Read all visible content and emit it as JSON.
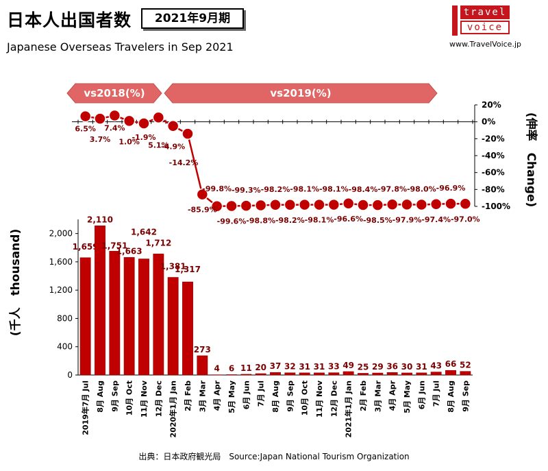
{
  "header": {
    "title": "日本人出国者数",
    "period": "2021年9月期",
    "subtitle": "Japanese Overseas Travelers in Sep 2021",
    "site": "www.TravelVoice.jp",
    "logo_top": "travel",
    "logo_bottom": "voice"
  },
  "source": "出典：日本政府観光局　Source:Japan  National Tourism  Organization",
  "colors": {
    "bar": "#c00000",
    "bar_stroke": "#8b0000",
    "line": "#c00000",
    "arrow": "#e06666",
    "label": "#7b0000"
  },
  "chart_data": [
    {
      "type": "bar",
      "ylabel": "(千人　thousand)",
      "ylim": [
        0,
        2200
      ],
      "yticks": [
        "0",
        "400",
        "800",
        "1,200",
        "1,600",
        "2,000"
      ],
      "ytick_values": [
        0,
        400,
        800,
        1200,
        1600,
        2000
      ],
      "categories": [
        "7月 Jul",
        "8月 Aug",
        "9月 Sep",
        "10月 Oct",
        "11月 Nov",
        "12月 Dec",
        "1月 Jan",
        "2月 Feb",
        "3月 Mar",
        "4月 Apr",
        "5月 May",
        "6月 Jun",
        "7月 Jul",
        "8月 Aug",
        "9月 Sep",
        "10月 Oct",
        "11月 Nov",
        "12月 Dec",
        "1月 Jan",
        "2月 Feb",
        "3月 Mar",
        "4月 Apr",
        "5月 May",
        "6月 Jun",
        "7月 Jul",
        "8月 Aug",
        "9月 Sep"
      ],
      "year_prefixes": {
        "0": "2019年",
        "6": "2020年",
        "18": "2021年"
      },
      "values": [
        1659,
        2110,
        1751,
        1663,
        1642,
        1712,
        1381,
        1317,
        273,
        4,
        6,
        11,
        20,
        37,
        32,
        31,
        31,
        33,
        49,
        25,
        29,
        36,
        30,
        31,
        43,
        66,
        52
      ],
      "value_labels": [
        "1,659",
        "2,110",
        "1,751",
        "1,663",
        "1,642",
        "1,712",
        "1,381",
        "1,317",
        "273",
        "4",
        "6",
        "11",
        "20",
        "37",
        "32",
        "31",
        "31",
        "33",
        "49",
        "25",
        "29",
        "36",
        "30",
        "31",
        "43",
        "66",
        "52"
      ]
    },
    {
      "type": "line",
      "ylabel": "(伸率　Change)",
      "ylim": [
        -100,
        20
      ],
      "yticks": [
        "20%",
        "0%",
        "-20%",
        "-40%",
        "-60%",
        "-80%",
        "-100%"
      ],
      "ytick_values": [
        20,
        0,
        -20,
        -40,
        -60,
        -80,
        -100
      ],
      "values": [
        6.5,
        3.7,
        7.4,
        1.0,
        -1.9,
        5.1,
        -4.9,
        -14.2,
        -85.9,
        -99.8,
        -99.6,
        -99.3,
        -98.8,
        -98.2,
        -98.2,
        -98.1,
        -98.1,
        -98.1,
        -96.6,
        -98.4,
        -98.5,
        -97.8,
        -97.9,
        -98.0,
        -97.4,
        -96.9,
        -97.0
      ],
      "value_labels": [
        "6.5%",
        "3.7%",
        "7.4%",
        "1.0%",
        "-1.9%",
        "5.1%",
        "-4.9%",
        "-14.2%",
        "-85.9%",
        "-99.8%",
        "-99.6%",
        "-99.3%",
        "-98.8%",
        "-98.2%",
        "-98.2%",
        "-98.1%",
        "-98.1%",
        "-98.1%",
        "-96.6%",
        "-98.4%",
        "-98.5%",
        "-97.8%",
        "-97.9%",
        "-98.0%",
        "-97.4%",
        "-96.9%",
        "-97.0%"
      ],
      "comparison_bands": [
        {
          "label": "vs2018(%)",
          "from_index": 0,
          "to_index": 5
        },
        {
          "label": "vs2019(%)",
          "from_index": 6,
          "to_index": 26
        }
      ]
    }
  ]
}
